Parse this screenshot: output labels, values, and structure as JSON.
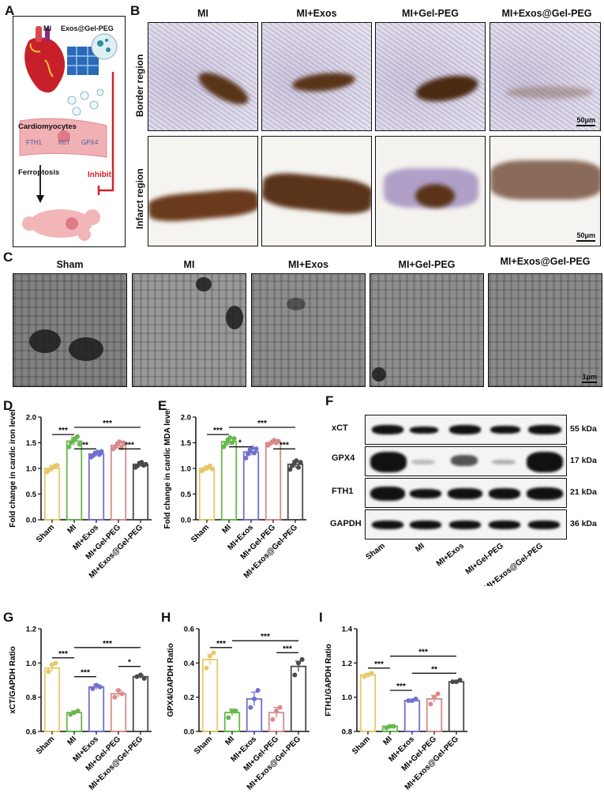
{
  "panels": {
    "A": "A",
    "B": "B",
    "C": "C",
    "D": "D",
    "E": "E",
    "F": "F",
    "G": "G",
    "H": "H",
    "I": "I"
  },
  "schematic": {
    "mi": "MI",
    "exos_gel": "Exos@Gel-PEG",
    "cardiomyocytes": "Cardiomyocytes",
    "proteins": [
      "FTH1",
      "XCT",
      "GPX4"
    ],
    "ferroptosis": "Ferroptosis",
    "inhibit": "Inhibit"
  },
  "ihc": {
    "columns": [
      "MI",
      "MI+Exos",
      "MI+Gel-PEG",
      "MI+Exos@Gel-PEG"
    ],
    "rows": [
      "Border region",
      "Infarct region"
    ],
    "scale": "50μm"
  },
  "tem": {
    "columns": [
      "Sham",
      "MI",
      "MI+Exos",
      "MI+Gel-PEG",
      "MI+Exos@Gel-PEG"
    ],
    "scale": "1μm"
  },
  "western": {
    "proteins": [
      "xCT",
      "GPX4",
      "FTH1",
      "GAPDH"
    ],
    "kda": [
      "55 kDa",
      "17 kDa",
      "21 kDa",
      "36 kDa"
    ],
    "lanes": [
      "Sham",
      "MI",
      "MI+Exos",
      "MI+Gel-PEG",
      "MI+Exos@Gel-PEG"
    ]
  },
  "colors": {
    "Sham": "#e6c86a",
    "MI": "#66b84a",
    "MI+Exos": "#6f6fd0",
    "MI+Gel-PEG": "#d98a8a",
    "MI+Exos@Gel-PEG": "#4a4a4a",
    "inhibit": "#d6202a"
  },
  "chart_data": [
    {
      "panel": "D",
      "type": "bar",
      "categories": [
        "Sham",
        "MI",
        "MI+Exos",
        "MI+Gel-PEG",
        "MI+Exos@Gel-PEG"
      ],
      "values": [
        1.0,
        1.53,
        1.28,
        1.45,
        1.08
      ],
      "errors": [
        0.06,
        0.08,
        0.05,
        0.06,
        0.05
      ],
      "points": [
        [
          0.93,
          0.97,
          1.0,
          1.02,
          1.05,
          1.06
        ],
        [
          1.42,
          1.5,
          1.55,
          1.58,
          1.62,
          1.47
        ],
        [
          1.22,
          1.25,
          1.3,
          1.32,
          1.27,
          1.33
        ],
        [
          1.38,
          1.42,
          1.48,
          1.52,
          1.4,
          1.5
        ],
        [
          1.02,
          1.05,
          1.1,
          1.12,
          1.06,
          1.08
        ]
      ],
      "ylabel": "Fold change in cardic iron level",
      "ylim": [
        0,
        2.0
      ],
      "yticks": [
        "0.0",
        "0.5",
        "1.0",
        "1.5",
        "2.0"
      ],
      "sig": [
        {
          "from": 0,
          "to": 1,
          "label": "***",
          "level": 1.66
        },
        {
          "from": 1,
          "to": 2,
          "label": "**",
          "level": 1.38
        },
        {
          "from": 3,
          "to": 4,
          "label": "***",
          "level": 1.38
        },
        {
          "from": 1,
          "to": 4,
          "label": "***",
          "level": 1.8
        }
      ]
    },
    {
      "panel": "E",
      "type": "bar",
      "categories": [
        "Sham",
        "MI",
        "MI+Exos",
        "MI+Gel-PEG",
        "MI+Exos@Gel-PEG"
      ],
      "values": [
        1.0,
        1.52,
        1.32,
        1.5,
        1.08
      ],
      "errors": [
        0.05,
        0.07,
        0.07,
        0.04,
        0.07
      ],
      "points": [
        [
          0.95,
          0.98,
          1.0,
          1.02,
          1.05,
          0.99
        ],
        [
          1.42,
          1.48,
          1.55,
          1.6,
          1.5,
          1.58
        ],
        [
          1.2,
          1.28,
          1.35,
          1.4,
          1.3,
          1.38
        ],
        [
          1.45,
          1.48,
          1.52,
          1.55,
          1.5,
          1.53
        ],
        [
          0.98,
          1.05,
          1.1,
          1.15,
          1.02,
          1.12
        ]
      ],
      "ylabel": "Fold change in cardic MDA level",
      "ylim": [
        0,
        2.0
      ],
      "yticks": [
        "0.0",
        "0.5",
        "1.0",
        "1.5",
        "2.0"
      ],
      "sig": [
        {
          "from": 0,
          "to": 1,
          "label": "***",
          "level": 1.66
        },
        {
          "from": 1,
          "to": 2,
          "label": "*",
          "level": 1.42
        },
        {
          "from": 3,
          "to": 4,
          "label": "***",
          "level": 1.38
        },
        {
          "from": 1,
          "to": 4,
          "label": "***",
          "level": 1.8
        }
      ]
    },
    {
      "panel": "G",
      "type": "bar",
      "categories": [
        "Sham",
        "MI",
        "MI+Exos",
        "MI+Gel-PEG",
        "MI+Exos@Gel-PEG"
      ],
      "values": [
        0.97,
        0.71,
        0.86,
        0.82,
        0.92
      ],
      "errors": [
        0.02,
        0.01,
        0.015,
        0.02,
        0.01
      ],
      "points": [
        [
          0.95,
          0.99,
          1.0
        ],
        [
          0.7,
          0.71,
          0.72
        ],
        [
          0.85,
          0.87,
          0.86
        ],
        [
          0.8,
          0.84,
          0.82
        ],
        [
          0.92,
          0.93,
          0.91
        ]
      ],
      "ylabel": "xCT/GAPDH Ratio",
      "ylim": [
        0.6,
        1.2
      ],
      "yticks": [
        "0.6",
        "0.8",
        "1.0",
        "1.2"
      ],
      "sig": [
        {
          "from": 0,
          "to": 1,
          "label": "***",
          "level": 1.03
        },
        {
          "from": 1,
          "to": 2,
          "label": "***",
          "level": 0.92
        },
        {
          "from": 3,
          "to": 4,
          "label": "*",
          "level": 0.98
        },
        {
          "from": 1,
          "to": 4,
          "label": "***",
          "level": 1.09
        }
      ]
    },
    {
      "panel": "H",
      "type": "bar",
      "categories": [
        "Sham",
        "MI",
        "MI+Exos",
        "MI+Gel-PEG",
        "MI+Exos@Gel-PEG"
      ],
      "values": [
        0.42,
        0.11,
        0.19,
        0.11,
        0.38
      ],
      "errors": [
        0.03,
        0.02,
        0.04,
        0.03,
        0.03
      ],
      "points": [
        [
          0.37,
          0.44,
          0.46
        ],
        [
          0.08,
          0.12,
          0.12
        ],
        [
          0.14,
          0.19,
          0.24
        ],
        [
          0.07,
          0.12,
          0.14
        ],
        [
          0.33,
          0.4,
          0.42
        ]
      ],
      "ylabel": "GPX4/GAPDH Ratio",
      "ylim": [
        0.0,
        0.6
      ],
      "yticks": [
        "0.0",
        "0.2",
        "0.4",
        "0.6"
      ],
      "sig": [
        {
          "from": 0,
          "to": 1,
          "label": "***",
          "level": 0.49
        },
        {
          "from": 3,
          "to": 4,
          "label": "***",
          "level": 0.46
        },
        {
          "from": 1,
          "to": 4,
          "label": "***",
          "level": 0.53
        }
      ]
    },
    {
      "panel": "I",
      "type": "bar",
      "categories": [
        "Sham",
        "MI",
        "MI+Exos",
        "MI+Gel-PEG",
        "MI+Exos@Gel-PEG"
      ],
      "values": [
        1.13,
        0.83,
        0.98,
        0.99,
        1.09
      ],
      "errors": [
        0.01,
        0.005,
        0.005,
        0.02,
        0.005
      ],
      "points": [
        [
          1.12,
          1.13,
          1.14
        ],
        [
          0.82,
          0.83,
          0.83
        ],
        [
          0.98,
          0.98,
          0.99
        ],
        [
          0.96,
          1.0,
          1.02
        ],
        [
          1.09,
          1.09,
          1.1
        ]
      ],
      "ylabel": "FTH1/GAPDH Ratio",
      "ylim": [
        0.8,
        1.4
      ],
      "yticks": [
        "0.8",
        "1.0",
        "1.2",
        "1.4"
      ],
      "sig": [
        {
          "from": 0,
          "to": 1,
          "label": "***",
          "level": 1.17
        },
        {
          "from": 1,
          "to": 2,
          "label": "***",
          "level": 1.04
        },
        {
          "from": 2,
          "to": 4,
          "label": "**",
          "level": 1.14
        },
        {
          "from": 1,
          "to": 4,
          "label": "***",
          "level": 1.24
        }
      ]
    }
  ]
}
